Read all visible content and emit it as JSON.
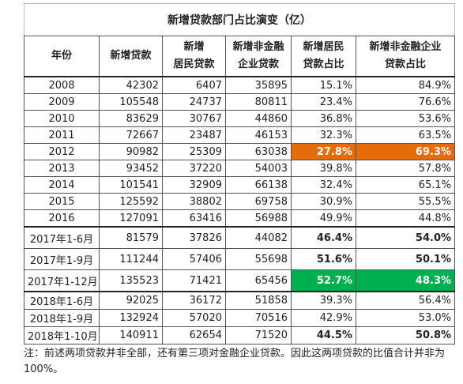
{
  "title": "新增贷款部门占比演变（亿）",
  "header": [
    [
      "年份"
    ],
    [
      "新增贷款"
    ],
    [
      "新增",
      "居民贷款"
    ],
    [
      "新增非金融",
      "企业贷款"
    ],
    [
      "新增居民",
      "贷款占比"
    ],
    [
      "新增非金融企业",
      "贷款占比"
    ]
  ],
  "rows": [
    [
      "2008",
      "42302",
      "6407",
      "35895",
      "15.1%",
      "84.9%"
    ],
    [
      "2009",
      "105548",
      "24737",
      "80811",
      "23.4%",
      "76.6%"
    ],
    [
      "2010",
      "83629",
      "30767",
      "44860",
      "36.8%",
      "53.6%"
    ],
    [
      "2011",
      "72667",
      "23487",
      "46153",
      "32.3%",
      "63.5%"
    ],
    [
      "2012",
      "90982",
      "25309",
      "63038",
      "27.8%",
      "69.3%"
    ],
    [
      "2013",
      "93452",
      "37220",
      "54003",
      "39.8%",
      "57.8%"
    ],
    [
      "2014",
      "101541",
      "32909",
      "66138",
      "32.4%",
      "65.1%"
    ],
    [
      "2015",
      "125592",
      "38802",
      "69758",
      "30.9%",
      "55.5%"
    ],
    [
      "2016",
      "127091",
      "63416",
      "56988",
      "49.9%",
      "44.8%"
    ],
    [
      "2017年1-6月",
      "81579",
      "37826",
      "44082",
      "46.4%",
      "54.0%"
    ],
    [
      "2017年1-9月",
      "111244",
      "57406",
      "55698",
      "51.6%",
      "50.1%"
    ],
    [
      "2017年1-12月",
      "135523",
      "71421",
      "65456",
      "52.7%",
      "48.3%"
    ],
    [
      "2018年1-6月",
      "92025",
      "36172",
      "51858",
      "39.3%",
      "56.4%"
    ],
    [
      "2018年1-9月",
      "132924",
      "57020",
      "70516",
      "42.9%",
      "53.0%"
    ],
    [
      "2018年1-10月",
      "140911",
      "62654",
      "71520",
      "44.5%",
      "50.8%"
    ]
  ],
  "note": "注：前述两项贷款并非全部，还有第三项对金融企业贷款。因此这两项贷款的比值合计并非为100%。"
}
